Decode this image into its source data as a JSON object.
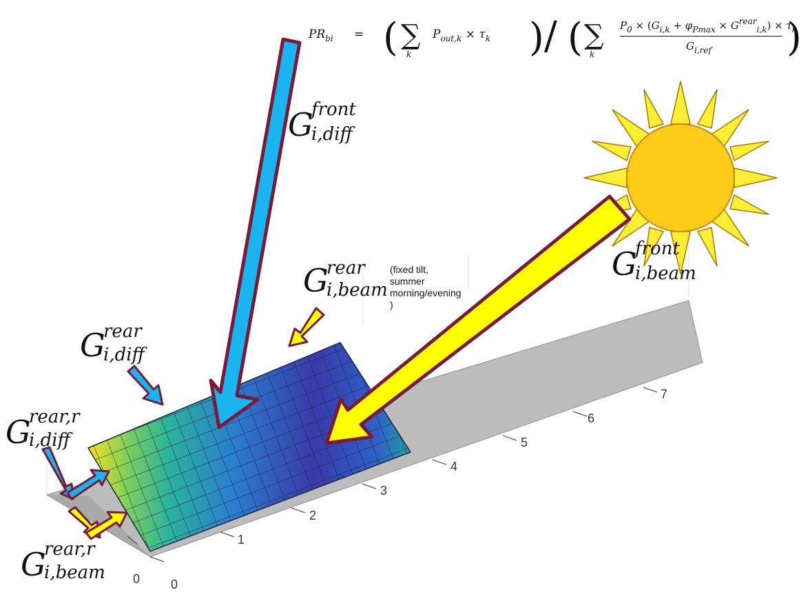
{
  "formula": {
    "lhs": "PR",
    "lhs_sub": "bi",
    "eq": "=",
    "sum1": "∑",
    "k": "k",
    "pout": "P",
    "pout_sub": "out,k",
    "times": "×",
    "tau": "τ",
    "tau_sub": "k",
    "slash": "/",
    "num": "P",
    "num_sub": "0",
    "g": "G",
    "g_sub": "i,k",
    "plus": "+",
    "phi": "φ",
    "phi_sub": "Pmax",
    "g2_sup": "rear",
    "g2_sub": "i,k",
    "den": "G",
    "den_sub": "i,ref"
  },
  "labels": {
    "front_diff": {
      "main": "G",
      "sup": "front",
      "sub": "i,diff"
    },
    "front_beam": {
      "main": "G",
      "sup": "front",
      "sub": "i,beam"
    },
    "rear_beam": {
      "main": "G",
      "sup": "rear",
      "sub": "i,beam"
    },
    "rear_diff": {
      "main": "G",
      "sup": "rear",
      "sub": "i,diff"
    },
    "rear_r_diff": {
      "main": "G",
      "sup": "rear,r",
      "sub": "i,diff"
    },
    "rear_r_beam": {
      "main": "G",
      "sup": "rear,r",
      "sub": "i,beam"
    }
  },
  "note": "(fixed tilt, summer morning/evening )",
  "axis_ticks": {
    "long_axis": [
      "0",
      "1",
      "2",
      "3",
      "4",
      "5",
      "6",
      "7"
    ],
    "short_axis": [
      "0"
    ]
  },
  "colors": {
    "arrow_outline": "#7a1a3a",
    "diffuse_arrow": "#1ab4ee",
    "beam_arrow": "#ffff00",
    "ground": "#bdbdbd",
    "sun": "#ffcc1a",
    "sun_rays": "#ffee33"
  }
}
